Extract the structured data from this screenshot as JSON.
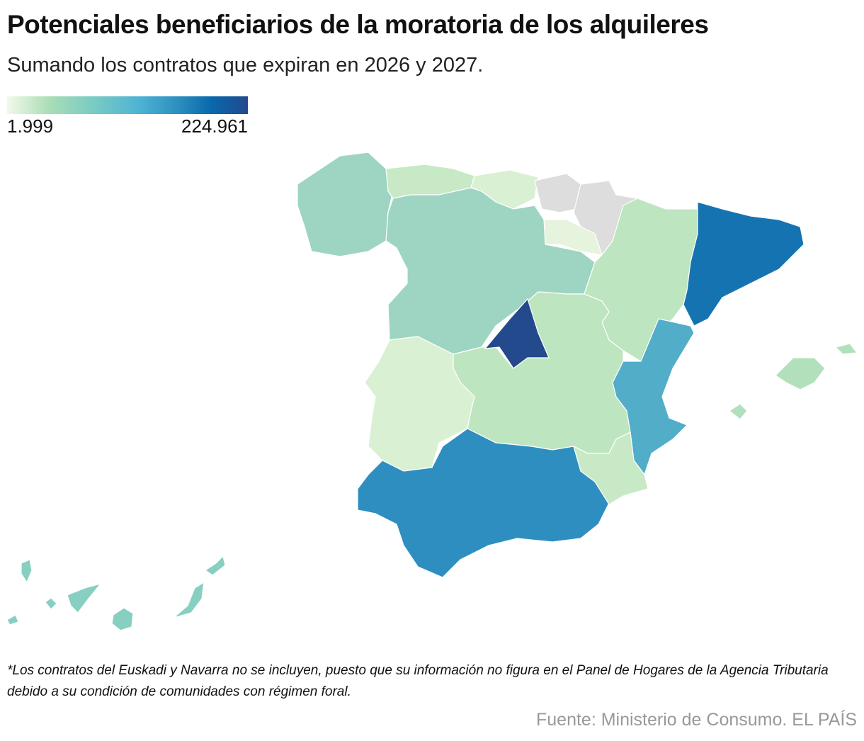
{
  "header": {
    "title": "Potenciales beneficiarios de la moratoria de los alquileres",
    "subtitle": "Sumando los contratos que expiran en 2026 y 2027."
  },
  "legend": {
    "min_label": "1.999",
    "max_label": "224.961",
    "colors": [
      "#f2f9ea",
      "#a8ddb5",
      "#7bccc4",
      "#4eb3d3",
      "#2b8cbe",
      "#0868ac",
      "#234a8d"
    ]
  },
  "regions": [
    {
      "id": "galicia",
      "fill": "#9dd5c2"
    },
    {
      "id": "asturias",
      "fill": "#c7e9c5"
    },
    {
      "id": "cantabria",
      "fill": "#d9f0d3"
    },
    {
      "id": "pais-vasco",
      "fill": "#dddddd",
      "no_data": true
    },
    {
      "id": "navarra",
      "fill": "#dddddd",
      "no_data": true
    },
    {
      "id": "la-rioja",
      "fill": "#e6f4de"
    },
    {
      "id": "castilla-y-leon",
      "fill": "#9dd5c2"
    },
    {
      "id": "aragon",
      "fill": "#bde5bf"
    },
    {
      "id": "cataluna",
      "fill": "#1673b2"
    },
    {
      "id": "madrid",
      "fill": "#234a8d"
    },
    {
      "id": "castilla-la-mancha",
      "fill": "#bde5bf"
    },
    {
      "id": "comunidad-valenciana",
      "fill": "#52adc9"
    },
    {
      "id": "extremadura",
      "fill": "#d9f0d3"
    },
    {
      "id": "andalucia",
      "fill": "#2e8ec0"
    },
    {
      "id": "murcia",
      "fill": "#c7e9c5"
    },
    {
      "id": "baleares",
      "fill": "#b2e0bb"
    },
    {
      "id": "canarias",
      "fill": "#86cfc1"
    }
  ],
  "footer": {
    "note": "*Los contratos del Euskadi y Navarra no se incluyen, puesto que su información no figura en el Panel de Hogares de la Agencia Tributaria debido a su condición de comunidades con régimen foral.",
    "source": "Fuente: Ministerio de Consumo. EL PAÍS"
  }
}
